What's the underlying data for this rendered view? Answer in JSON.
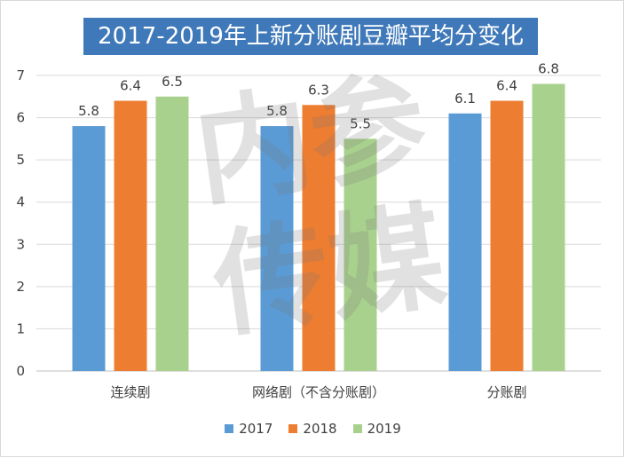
{
  "chart_data": {
    "type": "bar",
    "title": "2017-2019年上新分账剧豆瓣平均分变化",
    "categories": [
      "连续剧",
      "网络剧（不含分账剧）",
      "分账剧"
    ],
    "series": [
      {
        "name": "2017",
        "color": "#5b9bd5",
        "values": [
          5.8,
          5.8,
          6.1
        ]
      },
      {
        "name": "2018",
        "color": "#ed7d31",
        "values": [
          6.4,
          6.3,
          6.4
        ]
      },
      {
        "name": "2019",
        "color": "#a9d18e",
        "values": [
          6.5,
          5.5,
          6.8
        ]
      }
    ],
    "ylim": [
      0,
      7
    ],
    "yticks": [
      "0",
      "1",
      "2",
      "3",
      "4",
      "5",
      "6",
      "7"
    ],
    "grid": true,
    "legend": "bottom",
    "watermark": "内参传媒"
  }
}
